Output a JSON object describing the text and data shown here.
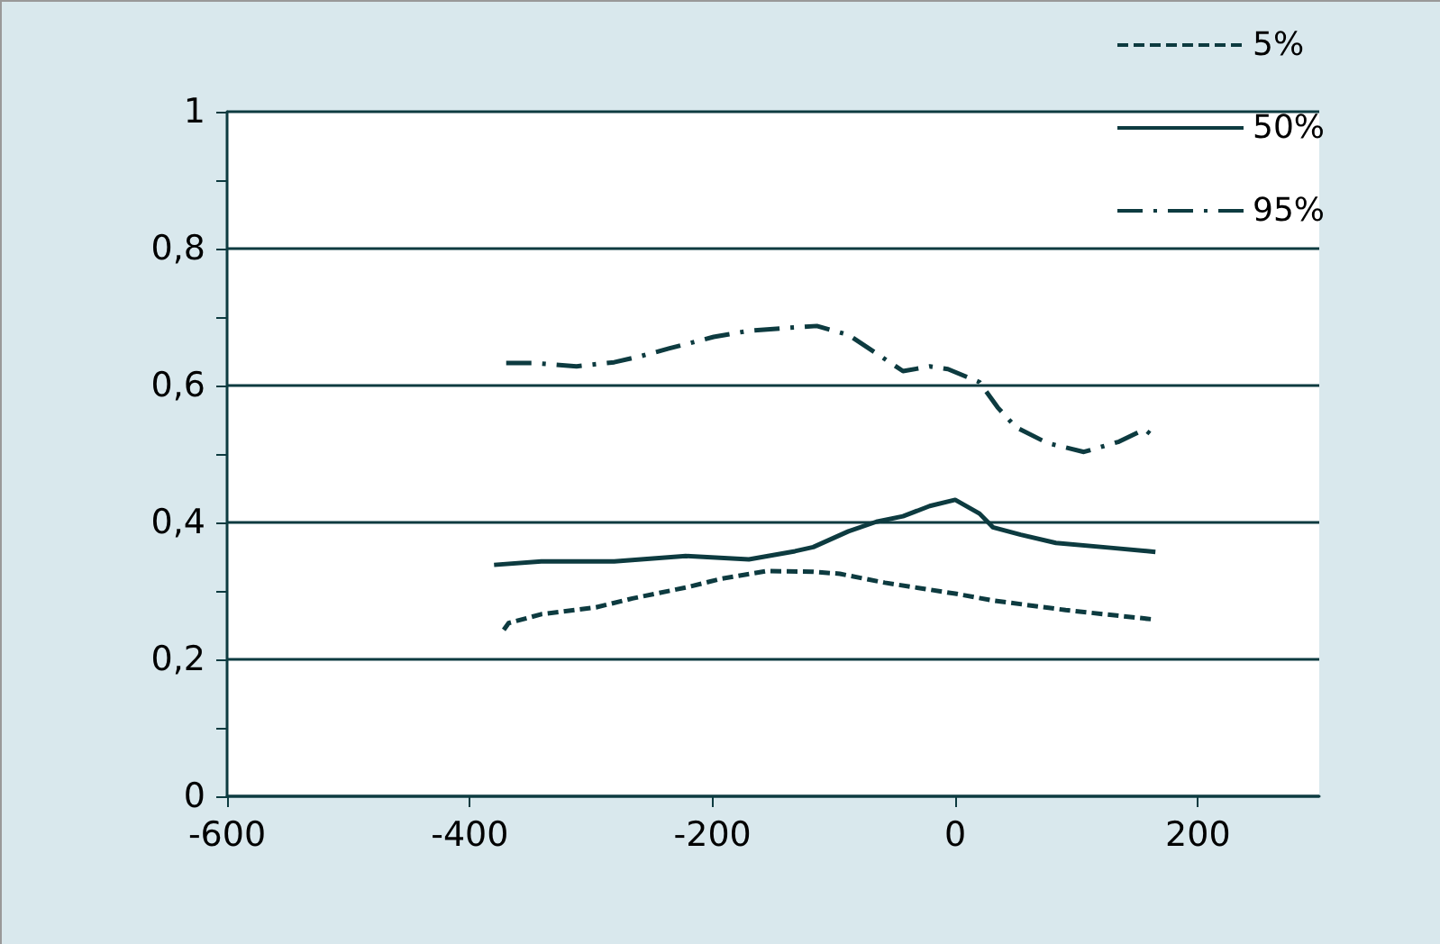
{
  "chart_data": {
    "type": "line",
    "xlim": [
      -600,
      300
    ],
    "xticks": [
      -600,
      -400,
      -200,
      0,
      200
    ],
    "ylim": [
      0,
      1
    ],
    "yticks": [
      {
        "value": 0,
        "label": "0"
      },
      {
        "value": 0.1,
        "label": null
      },
      {
        "value": 0.2,
        "label": "0,2"
      },
      {
        "value": 0.3,
        "label": null
      },
      {
        "value": 0.4,
        "label": "0,4"
      },
      {
        "value": 0.5,
        "label": null
      },
      {
        "value": 0.6,
        "label": "0,6"
      },
      {
        "value": 0.7,
        "label": null
      },
      {
        "value": 0.8,
        "label": "0,8"
      },
      {
        "value": 0.9,
        "label": null
      },
      {
        "value": 1,
        "label": "1"
      }
    ],
    "grid": "y",
    "legend": "top right",
    "marker": "none",
    "series": [
      {
        "name": "5%",
        "color": "#0d3b40",
        "line_style": "dashed",
        "x": [
          -372,
          -368,
          -341,
          -296,
          -266,
          -222,
          -192,
          -155,
          -117,
          -95,
          -58,
          0,
          31,
          91,
          165
        ],
        "values": [
          0.243,
          0.253,
          0.266,
          0.276,
          0.289,
          0.305,
          0.318,
          0.329,
          0.328,
          0.325,
          0.312,
          0.296,
          0.286,
          0.272,
          0.258
        ]
      },
      {
        "name": "50%",
        "color": "#0d3b40",
        "line_style": "solid",
        "x": [
          -380,
          -341,
          -281,
          -222,
          -170,
          -132,
          -117,
          -88,
          -65,
          -43,
          -21,
          0,
          20,
          31,
          54,
          83,
          128,
          165
        ],
        "values": [
          0.338,
          0.343,
          0.343,
          0.351,
          0.346,
          0.358,
          0.364,
          0.387,
          0.401,
          0.409,
          0.424,
          0.433,
          0.413,
          0.393,
          0.382,
          0.37,
          0.363,
          0.357
        ]
      },
      {
        "name": "95%",
        "color": "#0d3b40",
        "line_style": "dashdot",
        "x": [
          -370,
          -348,
          -312,
          -281,
          -259,
          -236,
          -199,
          -170,
          -140,
          -114,
          -88,
          -65,
          -43,
          -21,
          -6,
          20,
          35,
          50,
          76,
          106,
          135,
          156,
          166
        ],
        "values": [
          0.633,
          0.633,
          0.628,
          0.634,
          0.643,
          0.654,
          0.671,
          0.68,
          0.684,
          0.687,
          0.674,
          0.647,
          0.621,
          0.628,
          0.624,
          0.605,
          0.568,
          0.539,
          0.516,
          0.503,
          0.518,
          0.536,
          0.522
        ]
      }
    ]
  }
}
